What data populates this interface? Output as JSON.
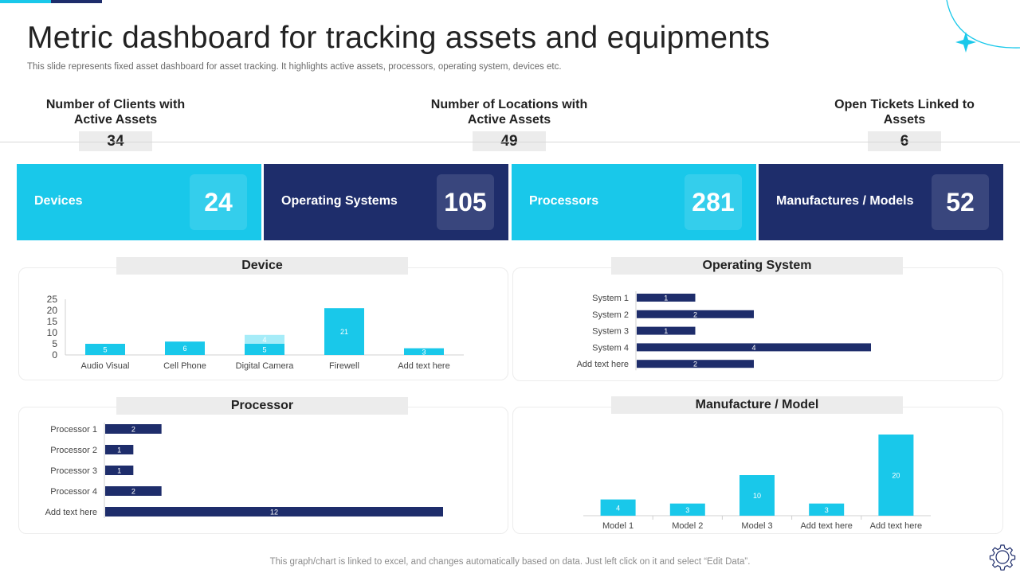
{
  "header": {
    "title": "Metric dashboard for tracking assets and equipments",
    "subtitle": "This slide represents fixed asset dashboard for asset tracking. It highlights active assets, processors, operating system, devices etc."
  },
  "kpis": [
    {
      "label": "Number of Clients with Active Assets",
      "value": "34"
    },
    {
      "label": "Number of Locations with Active Assets",
      "value": "49"
    },
    {
      "label": "Open Tickets Linked to Assets",
      "value": "6"
    }
  ],
  "cards": [
    {
      "label": "Devices",
      "value": "24"
    },
    {
      "label": "Operating Systems",
      "value": "105"
    },
    {
      "label": "Processors",
      "value": "281"
    },
    {
      "label": "Manufactures / Models",
      "value": "52"
    }
  ],
  "colors": {
    "accent": "#19c8ea",
    "accent_light": "#a6ecf8",
    "navy": "#1e2d6b"
  },
  "footer": "This graph/chart is linked to excel,  and changes automatically based on data. Just left click on it and select “Edit Data”.",
  "chart_data": [
    {
      "title": "Device",
      "type": "bar",
      "stacked": true,
      "categories": [
        "Audio Visual",
        "Cell Phone",
        "Digital Camera",
        "Firewell",
        "Add text here"
      ],
      "series": [
        {
          "values": [
            5,
            6,
            5,
            21,
            3
          ],
          "color": "#19c8ea"
        },
        {
          "values": [
            0,
            0,
            4,
            0,
            0
          ],
          "color": "#a6ecf8"
        }
      ],
      "data_labels": [
        {
          "category": 0,
          "series": 0,
          "text": "5"
        },
        {
          "category": 1,
          "series": 0,
          "text": "6"
        },
        {
          "category": 2,
          "series": 0,
          "text": "5"
        },
        {
          "category": 2,
          "series": 1,
          "text": "4"
        },
        {
          "category": 3,
          "series": 0,
          "text": "21"
        },
        {
          "category": 4,
          "series": 0,
          "text": "3"
        }
      ],
      "yticks": [
        "0",
        "5",
        "10",
        "15",
        "20",
        "25"
      ],
      "ylim": [
        0,
        25
      ]
    },
    {
      "title": "Operating System",
      "type": "bar",
      "orientation": "horizontal",
      "categories": [
        "System 1",
        "System 2",
        "System 3",
        "System 4",
        "Add text here"
      ],
      "values": [
        1,
        2,
        1,
        4,
        2
      ],
      "color": "#1e2d6b"
    },
    {
      "title": "Processor",
      "type": "bar",
      "orientation": "horizontal",
      "categories": [
        "Processor 1",
        "Processor 2",
        "Processor 3",
        "Processor 4",
        "Add text here"
      ],
      "values": [
        2,
        1,
        1,
        2,
        12
      ],
      "color": "#1e2d6b"
    },
    {
      "title": "Manufacture / Model",
      "type": "bar",
      "categories": [
        "Model 1",
        "Model 2",
        "Model 3",
        "Add text here",
        "Add text here"
      ],
      "values": [
        4,
        3,
        10,
        3,
        20
      ],
      "color": "#19c8ea"
    }
  ]
}
